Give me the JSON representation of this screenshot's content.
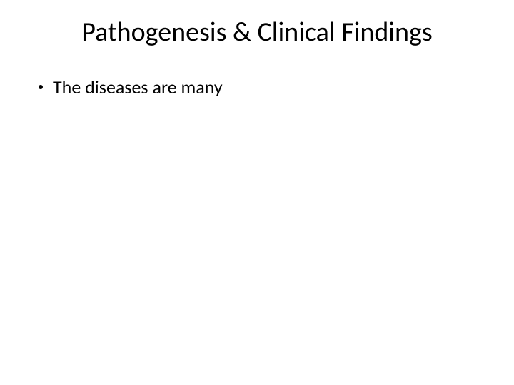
{
  "slide": {
    "title": "Pathogenesis & Clinical Findings",
    "title_fontsize": 38,
    "title_color": "#000000",
    "bullets": [
      {
        "text": "The diseases are many"
      }
    ],
    "bullet_fontsize": 26,
    "bullet_color": "#000000",
    "bullet_dot_size": 6,
    "bullet_dot_margin_right": 14,
    "background_color": "#ffffff"
  }
}
